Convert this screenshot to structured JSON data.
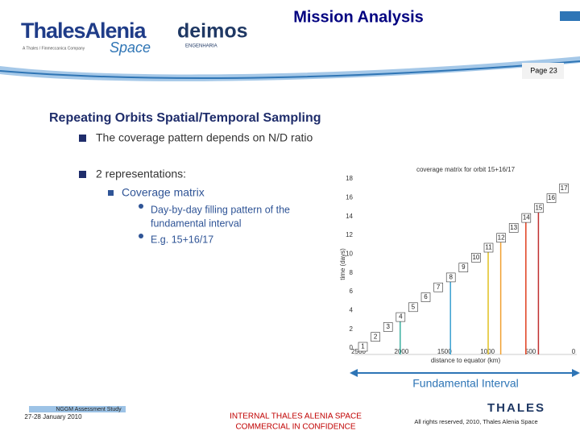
{
  "header": {
    "logo_1": "ThalesAlenia",
    "logo_1_sub": "A Thales / Finmeccanica Company",
    "logo_1_space": "Space",
    "logo_2": "deimos",
    "logo_2_sub": "ENGENHARIA",
    "title": "Mission Analysis",
    "page": "Page 23"
  },
  "content": {
    "heading": "Repeating Orbits Spatial/Temporal Sampling",
    "bullet_1": "The coverage pattern depends on N/D ratio",
    "bullet_2": "2 representations:",
    "sub_bullet": "Coverage matrix",
    "point_1_line_1": "Day-by-day filling pattern of the",
    "point_1_line_2": "fundamental interval",
    "point_2": "E.g. 15+16/17"
  },
  "figure": {
    "title": "coverage matrix for orbit 15+16/17",
    "y_label": "time (days)",
    "x_label": "distance to equator (km)",
    "y_tick_labels": [
      "18",
      "16",
      "14",
      "12",
      "10",
      "8",
      "6",
      "4",
      "2",
      "0"
    ],
    "x_tick_labels": [
      "2500",
      "2000",
      "1500",
      "1000",
      "500",
      "0"
    ],
    "box_labels": [
      "1",
      "2",
      "3",
      "4",
      "5",
      "6",
      "7",
      "8",
      "9",
      "10",
      "11",
      "12",
      "13",
      "14",
      "15",
      "16",
      "17"
    ],
    "caption": "Fundamental Interval"
  },
  "footer": {
    "study": "NGGM Assessment Study",
    "date": "27-28 January 2010",
    "confidential_1": "INTERNAL THALES ALENIA SPACE",
    "confidential_2": "COMMERCIAL IN CONFIDENCE",
    "thales": "THALES",
    "rights": "All rights reserved, 2010, Thales Alenia Space"
  }
}
